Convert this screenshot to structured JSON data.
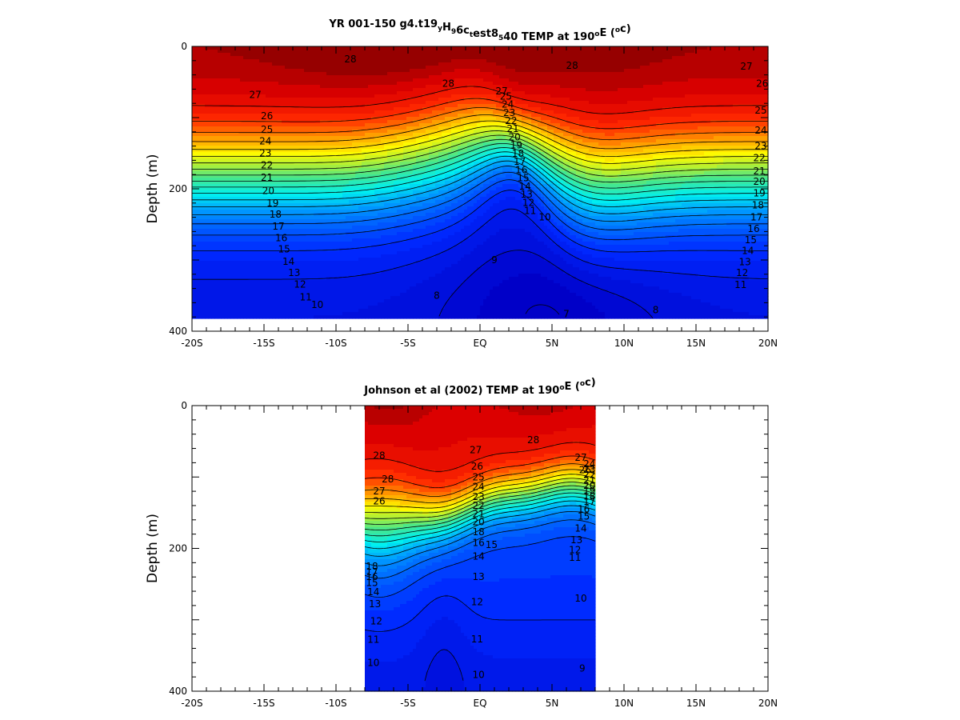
{
  "chart_data": [
    {
      "type": "heatmap",
      "title": {
        "parts": [
          {
            "t": "YR 001-150 g4.t19",
            "s": "n"
          },
          {
            "t": "y",
            "s": "sub"
          },
          {
            "t": "H",
            "s": "n"
          },
          {
            "t": "9",
            "s": "sub"
          },
          {
            "t": "6c",
            "s": "n"
          },
          {
            "t": "t",
            "s": "sub"
          },
          {
            "t": "est8",
            "s": "n"
          },
          {
            "t": "5",
            "s": "sub"
          },
          {
            "t": "40 TEMP at 190",
            "s": "n"
          },
          {
            "t": "o",
            "s": "sup"
          },
          {
            "t": "E (",
            "s": "n"
          },
          {
            "t": "o",
            "s": "sup"
          },
          {
            "t": "c)",
            "s": "n"
          }
        ]
      },
      "xlabel": "",
      "ylabel": "Depth (m)",
      "xlim": [
        -20,
        20
      ],
      "ylim": [
        0,
        400
      ],
      "y_reversed": true,
      "xticks": [
        {
          "v": -20,
          "label": "-20S"
        },
        {
          "v": -15,
          "label": "-15S"
        },
        {
          "v": -10,
          "label": "-10S"
        },
        {
          "v": -5,
          "label": "-5S"
        },
        {
          "v": 0,
          "label": "EQ"
        },
        {
          "v": 5,
          "label": "5N"
        },
        {
          "v": 10,
          "label": "10N"
        },
        {
          "v": 15,
          "label": "15N"
        },
        {
          "v": 20,
          "label": "20N"
        }
      ],
      "yticks": [
        {
          "v": 0,
          "label": "0"
        },
        {
          "v": 200,
          "label": "200"
        },
        {
          "v": 400,
          "label": "400"
        }
      ],
      "data_extent": {
        "lat": [
          -20,
          20
        ],
        "depth": [
          0,
          382
        ]
      },
      "color_scale": {
        "min": 8,
        "max": 29.5,
        "colormap": "rainbow (blue to dark red)"
      },
      "contour_levels": [
        7,
        8,
        9,
        10,
        11,
        12,
        13,
        14,
        15,
        16,
        17,
        18,
        19,
        20,
        21,
        22,
        23,
        24,
        25,
        26,
        27,
        28
      ],
      "contour_labels": [
        {
          "text": "28",
          "lat": -9.0,
          "depth": 18
        },
        {
          "text": "28",
          "lat": 6.4,
          "depth": 27
        },
        {
          "text": "28",
          "lat": -2.2,
          "depth": 52
        },
        {
          "text": "27",
          "lat": 1.5,
          "depth": 63
        },
        {
          "text": "27",
          "lat": -15.6,
          "depth": 68
        },
        {
          "text": "27",
          "lat": 18.5,
          "depth": 28
        },
        {
          "text": "26",
          "lat": 19.6,
          "depth": 52
        },
        {
          "text": "26",
          "lat": -14.8,
          "depth": 98
        },
        {
          "text": "25",
          "lat": -14.8,
          "depth": 117
        },
        {
          "text": "25",
          "lat": 19.5,
          "depth": 90
        },
        {
          "text": "24",
          "lat": -14.9,
          "depth": 133
        },
        {
          "text": "24",
          "lat": 19.5,
          "depth": 118
        },
        {
          "text": "23",
          "lat": -14.9,
          "depth": 150
        },
        {
          "text": "23",
          "lat": 19.5,
          "depth": 140
        },
        {
          "text": "22",
          "lat": -14.8,
          "depth": 167
        },
        {
          "text": "22",
          "lat": 19.4,
          "depth": 157
        },
        {
          "text": "21",
          "lat": -14.8,
          "depth": 184
        },
        {
          "text": "21",
          "lat": 19.4,
          "depth": 175
        },
        {
          "text": "20",
          "lat": -14.7,
          "depth": 203
        },
        {
          "text": "20",
          "lat": 19.4,
          "depth": 190
        },
        {
          "text": "19",
          "lat": -14.4,
          "depth": 220
        },
        {
          "text": "19",
          "lat": 19.4,
          "depth": 206
        },
        {
          "text": "18",
          "lat": -14.2,
          "depth": 236
        },
        {
          "text": "18",
          "lat": 19.3,
          "depth": 223
        },
        {
          "text": "17",
          "lat": -14.0,
          "depth": 253
        },
        {
          "text": "17",
          "lat": 19.2,
          "depth": 240
        },
        {
          "text": "16",
          "lat": -13.8,
          "depth": 269
        },
        {
          "text": "16",
          "lat": 19.0,
          "depth": 256
        },
        {
          "text": "15",
          "lat": -13.6,
          "depth": 285
        },
        {
          "text": "15",
          "lat": 18.8,
          "depth": 272
        },
        {
          "text": "14",
          "lat": -13.3,
          "depth": 302
        },
        {
          "text": "14",
          "lat": 18.6,
          "depth": 287
        },
        {
          "text": "13",
          "lat": -12.9,
          "depth": 318
        },
        {
          "text": "13",
          "lat": 18.4,
          "depth": 303
        },
        {
          "text": "12",
          "lat": -12.5,
          "depth": 334
        },
        {
          "text": "12",
          "lat": 18.2,
          "depth": 318
        },
        {
          "text": "11",
          "lat": -12.1,
          "depth": 352
        },
        {
          "text": "11",
          "lat": 18.1,
          "depth": 335
        },
        {
          "text": "10",
          "lat": -11.3,
          "depth": 363
        },
        {
          "text": "10",
          "lat": 4.5,
          "depth": 240
        },
        {
          "text": "9",
          "lat": 1.0,
          "depth": 300
        },
        {
          "text": "8",
          "lat": -3.0,
          "depth": 350
        },
        {
          "text": "8",
          "lat": 12.2,
          "depth": 370
        },
        {
          "text": "7",
          "lat": 6.0,
          "depth": 376
        }
      ],
      "interior_labels": [
        "25",
        "24",
        "23",
        "22",
        "21",
        "20",
        "19",
        "18",
        "17",
        "16",
        "15",
        "14",
        "13",
        "12",
        "11"
      ]
    },
    {
      "type": "heatmap",
      "title": {
        "parts": [
          {
            "t": "Johnson et al (2002) TEMP at 190",
            "s": "n"
          },
          {
            "t": "o",
            "s": "sup"
          },
          {
            "t": "E (",
            "s": "n"
          },
          {
            "t": "o",
            "s": "sup"
          },
          {
            "t": "c)",
            "s": "n"
          }
        ]
      },
      "xlabel": "",
      "ylabel": "Depth (m)",
      "xlim": [
        -20,
        20
      ],
      "ylim": [
        0,
        400
      ],
      "y_reversed": true,
      "xticks": [
        {
          "v": -20,
          "label": "-20S"
        },
        {
          "v": -15,
          "label": "-15S"
        },
        {
          "v": -10,
          "label": "-10S"
        },
        {
          "v": -5,
          "label": "-5S"
        },
        {
          "v": 0,
          "label": "EQ"
        },
        {
          "v": 5,
          "label": "5N"
        },
        {
          "v": 10,
          "label": "10N"
        },
        {
          "v": 15,
          "label": "15N"
        },
        {
          "v": 20,
          "label": "20N"
        }
      ],
      "yticks": [
        {
          "v": 0,
          "label": "0"
        },
        {
          "v": 200,
          "label": "200"
        },
        {
          "v": 400,
          "label": "400"
        }
      ],
      "data_extent": {
        "lat": [
          -8,
          8
        ],
        "depth": [
          0,
          400
        ]
      },
      "color_scale": {
        "min": 9.5,
        "max": 29.5,
        "colormap": "rainbow (blue to dark red)"
      },
      "contour_levels": [
        9,
        10,
        11,
        12,
        13,
        14,
        15,
        16,
        17,
        18,
        19,
        20,
        21,
        22,
        23,
        24,
        25,
        26,
        27,
        28
      ],
      "contour_labels": [
        {
          "text": "28",
          "lat": -7.0,
          "depth": 70
        },
        {
          "text": "28",
          "lat": 3.7,
          "depth": 48
        },
        {
          "text": "28",
          "lat": -6.4,
          "depth": 103
        },
        {
          "text": "27",
          "lat": -0.3,
          "depth": 62
        },
        {
          "text": "27",
          "lat": -7.0,
          "depth": 120
        },
        {
          "text": "27",
          "lat": 7.0,
          "depth": 73
        },
        {
          "text": "26",
          "lat": -0.2,
          "depth": 85
        },
        {
          "text": "26",
          "lat": -7.0,
          "depth": 134
        },
        {
          "text": "26",
          "lat": 7.3,
          "depth": 90
        },
        {
          "text": "25",
          "lat": -0.1,
          "depth": 100
        },
        {
          "text": "24",
          "lat": -0.1,
          "depth": 114
        },
        {
          "text": "23",
          "lat": -0.1,
          "depth": 128
        },
        {
          "text": "22",
          "lat": -0.1,
          "depth": 140
        },
        {
          "text": "21",
          "lat": -0.1,
          "depth": 152
        },
        {
          "text": "20",
          "lat": -0.1,
          "depth": 163
        },
        {
          "text": "18",
          "lat": -0.1,
          "depth": 177
        },
        {
          "text": "16",
          "lat": -0.1,
          "depth": 192
        },
        {
          "text": "15",
          "lat": 0.8,
          "depth": 195
        },
        {
          "text": "14",
          "lat": -0.1,
          "depth": 211
        },
        {
          "text": "13",
          "lat": -0.1,
          "depth": 240
        },
        {
          "text": "12",
          "lat": -0.2,
          "depth": 275
        },
        {
          "text": "11",
          "lat": -0.2,
          "depth": 327
        },
        {
          "text": "10",
          "lat": -0.1,
          "depth": 377
        },
        {
          "text": "18",
          "lat": -7.5,
          "depth": 225
        },
        {
          "text": "17",
          "lat": -7.5,
          "depth": 233
        },
        {
          "text": "16",
          "lat": -7.5,
          "depth": 240
        },
        {
          "text": "15",
          "lat": -7.5,
          "depth": 248
        },
        {
          "text": "14",
          "lat": -7.4,
          "depth": 261
        },
        {
          "text": "13",
          "lat": -7.3,
          "depth": 278
        },
        {
          "text": "12",
          "lat": -7.2,
          "depth": 302
        },
        {
          "text": "11",
          "lat": -7.4,
          "depth": 328
        },
        {
          "text": "10",
          "lat": -7.4,
          "depth": 360
        },
        {
          "text": "16",
          "lat": 7.2,
          "depth": 145
        },
        {
          "text": "15",
          "lat": 7.2,
          "depth": 155
        },
        {
          "text": "14",
          "lat": 7.0,
          "depth": 172
        },
        {
          "text": "13",
          "lat": 6.7,
          "depth": 188
        },
        {
          "text": "12",
          "lat": 6.6,
          "depth": 202
        },
        {
          "text": "11",
          "lat": 6.6,
          "depth": 213
        },
        {
          "text": "10",
          "lat": 7.0,
          "depth": 270
        },
        {
          "text": "9",
          "lat": 7.1,
          "depth": 368
        }
      ],
      "right_stack_labels": [
        "24",
        "23",
        "22",
        "21",
        "20",
        "19",
        "18",
        "17"
      ]
    }
  ]
}
